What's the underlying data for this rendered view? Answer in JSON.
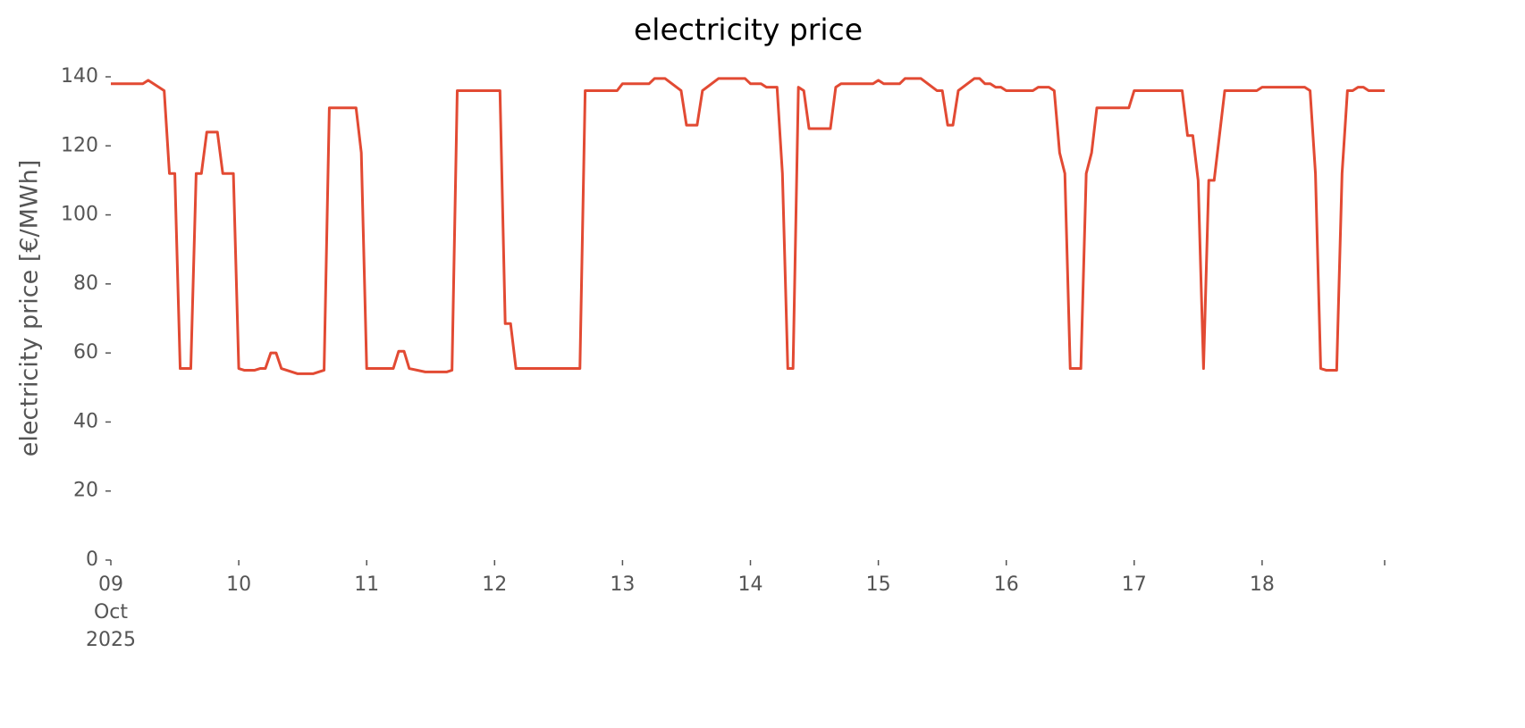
{
  "chart_data": {
    "type": "line",
    "title": "electricity price",
    "ylabel": "electricity price [€/MWh]",
    "x": [
      9,
      9.25,
      9.292,
      9.417,
      9.458,
      9.5,
      9.542,
      9.625,
      9.667,
      9.708,
      9.75,
      9.833,
      9.875,
      9.958,
      10,
      10.042,
      10.125,
      10.167,
      10.208,
      10.25,
      10.292,
      10.333,
      10.458,
      10.583,
      10.667,
      10.708,
      10.917,
      10.958,
      11,
      11.208,
      11.25,
      11.292,
      11.333,
      11.458,
      11.625,
      11.667,
      11.708,
      12.042,
      12.083,
      12.125,
      12.167,
      12.667,
      12.708,
      12.958,
      13,
      13.208,
      13.25,
      13.333,
      13.458,
      13.5,
      13.583,
      13.625,
      13.75,
      13.958,
      14,
      14.083,
      14.125,
      14.208,
      14.25,
      14.292,
      14.333,
      14.375,
      14.417,
      14.458,
      14.625,
      14.667,
      14.708,
      14.958,
      15,
      15.042,
      15.167,
      15.208,
      15.333,
      15.458,
      15.5,
      15.542,
      15.583,
      15.625,
      15.75,
      15.792,
      15.833,
      15.875,
      15.917,
      15.958,
      16,
      16.208,
      16.25,
      16.333,
      16.375,
      16.417,
      16.458,
      16.5,
      16.583,
      16.625,
      16.667,
      16.708,
      16.958,
      17,
      17.375,
      17.417,
      17.458,
      17.5,
      17.542,
      17.583,
      17.625,
      17.708,
      17.958,
      18,
      18.333,
      18.375,
      18.417,
      18.458,
      18.5,
      18.583,
      18.625,
      18.667,
      18.708,
      18.75,
      18.792,
      18.833,
      18.958
    ],
    "series": [
      {
        "name": "electricity price",
        "color": "#e24a33",
        "values": [
          138,
          138,
          139,
          136,
          112,
          112,
          55.5,
          55.5,
          112,
          112,
          124,
          124,
          112,
          112,
          55.5,
          55,
          55,
          55.5,
          55.5,
          60,
          60,
          55.5,
          54,
          54,
          55,
          131,
          131,
          118,
          55.5,
          55.5,
          60.5,
          60.5,
          55.5,
          54.5,
          54.5,
          55,
          136,
          136,
          68.5,
          68.5,
          55.5,
          55.5,
          136,
          136,
          138,
          138,
          139.5,
          139.5,
          136,
          126,
          126,
          136,
          139.5,
          139.5,
          138,
          138,
          137,
          137,
          112,
          55.5,
          55.5,
          137,
          136,
          125,
          125,
          137,
          138,
          138,
          139,
          138,
          138,
          139.5,
          139.5,
          136,
          136,
          126,
          126,
          136,
          139.5,
          139.5,
          138,
          138,
          137,
          137,
          136,
          136,
          137,
          137,
          136,
          118,
          112,
          55.5,
          55.5,
          112,
          118,
          131,
          131,
          136,
          136,
          123,
          123,
          110,
          55.5,
          110,
          110,
          136,
          136,
          137,
          137,
          136,
          112,
          55.5,
          55,
          55,
          112,
          136,
          136,
          137,
          137,
          136,
          136
        ]
      }
    ],
    "xlim": [
      9,
      18.958
    ],
    "xticks": [
      {
        "value": 9,
        "label": "09\nOct\n2025"
      },
      10,
      11,
      12,
      13,
      14,
      15,
      16,
      17,
      18
    ],
    "ylim": [
      0,
      140
    ],
    "yticks": [
      0,
      20,
      40,
      60,
      80,
      100,
      120,
      140
    ],
    "grid": false
  }
}
